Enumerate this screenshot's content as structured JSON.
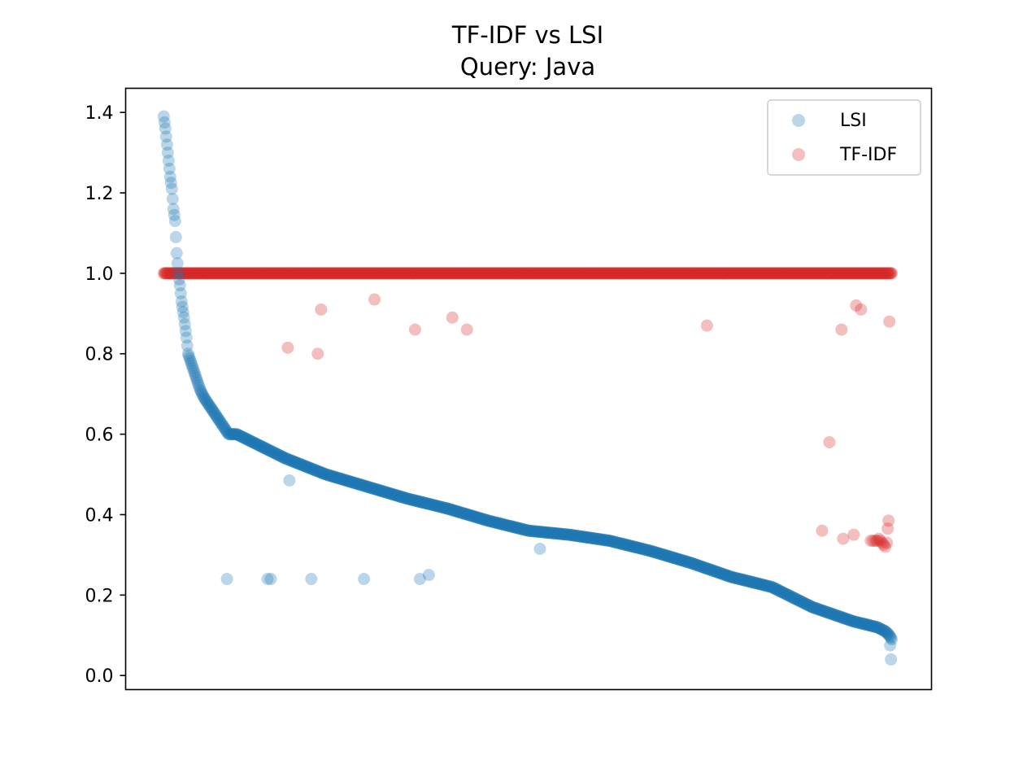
{
  "chart_data": {
    "type": "scatter",
    "title": "TF-IDF vs LSI",
    "subtitle": "Query: Java",
    "xlabel": "",
    "ylabel": "",
    "x_ticks_visible": false,
    "ylim": [
      -0.035,
      1.46
    ],
    "yticks": [
      0.0,
      0.2,
      0.4,
      0.6,
      0.8,
      1.0,
      1.2,
      1.4
    ],
    "ytick_labels": [
      "0.0",
      "0.2",
      "0.4",
      "0.6",
      "0.8",
      "1.0",
      "1.2",
      "1.4"
    ],
    "xlim": [
      -47,
      947
    ],
    "legend_position": "upper right",
    "grid": false,
    "colors": {
      "LSI": "#1f77b4",
      "TF-IDF": "#d62728"
    },
    "point_alpha": 0.3,
    "series": [
      {
        "name": "LSI",
        "color": "#1f77b4",
        "curve_anchors": [
          [
            0,
            1.39
          ],
          [
            2,
            1.36
          ],
          [
            4,
            1.32
          ],
          [
            6,
            1.28
          ],
          [
            8,
            1.24
          ],
          [
            10,
            1.21
          ],
          [
            12,
            1.16
          ],
          [
            14,
            1.13
          ],
          [
            16,
            1.05
          ],
          [
            18,
            1.0
          ],
          [
            20,
            0.97
          ],
          [
            22,
            0.93
          ],
          [
            25,
            0.89
          ],
          [
            28,
            0.84
          ],
          [
            30,
            0.8
          ],
          [
            35,
            0.77
          ],
          [
            40,
            0.74
          ],
          [
            45,
            0.71
          ],
          [
            50,
            0.69
          ],
          [
            60,
            0.66
          ],
          [
            70,
            0.63
          ],
          [
            80,
            0.6
          ],
          [
            90,
            0.6
          ],
          [
            100,
            0.59
          ],
          [
            150,
            0.54
          ],
          [
            200,
            0.5
          ],
          [
            250,
            0.47
          ],
          [
            300,
            0.44
          ],
          [
            350,
            0.415
          ],
          [
            400,
            0.385
          ],
          [
            450,
            0.36
          ],
          [
            500,
            0.35
          ],
          [
            550,
            0.335
          ],
          [
            600,
            0.31
          ],
          [
            650,
            0.28
          ],
          [
            700,
            0.245
          ],
          [
            750,
            0.22
          ],
          [
            800,
            0.17
          ],
          [
            850,
            0.135
          ],
          [
            880,
            0.12
          ],
          [
            890,
            0.11
          ],
          [
            895,
            0.1
          ],
          [
            898,
            0.09
          ]
        ],
        "outliers": [
          [
            78,
            0.24
          ],
          [
            128,
            0.24
          ],
          [
            132,
            0.24
          ],
          [
            182,
            0.24
          ],
          [
            247,
            0.24
          ],
          [
            316,
            0.24
          ],
          [
            327,
            0.25
          ],
          [
            155,
            0.485
          ],
          [
            464,
            0.315
          ],
          [
            896,
            0.075
          ],
          [
            897,
            0.04
          ]
        ]
      },
      {
        "name": "TF-IDF",
        "color": "#d62728",
        "constant_value": 1.0,
        "constant_range": [
          0,
          898
        ],
        "outliers": [
          [
            153,
            0.815
          ],
          [
            190,
            0.8
          ],
          [
            194,
            0.91
          ],
          [
            260,
            0.935
          ],
          [
            310,
            0.86
          ],
          [
            356,
            0.89
          ],
          [
            374,
            0.86
          ],
          [
            670,
            0.87
          ],
          [
            812,
            0.36
          ],
          [
            821,
            0.58
          ],
          [
            836,
            0.86
          ],
          [
            838,
            0.34
          ],
          [
            851,
            0.35
          ],
          [
            854,
            0.92
          ],
          [
            860,
            0.91
          ],
          [
            872,
            0.335
          ],
          [
            875,
            0.335
          ],
          [
            878,
            0.335
          ],
          [
            880,
            0.335
          ],
          [
            882,
            0.34
          ],
          [
            884,
            0.335
          ],
          [
            886,
            0.33
          ],
          [
            888,
            0.325
          ],
          [
            890,
            0.32
          ],
          [
            892,
            0.33
          ],
          [
            893,
            0.365
          ],
          [
            894,
            0.385
          ],
          [
            895,
            0.88
          ]
        ]
      }
    ]
  }
}
